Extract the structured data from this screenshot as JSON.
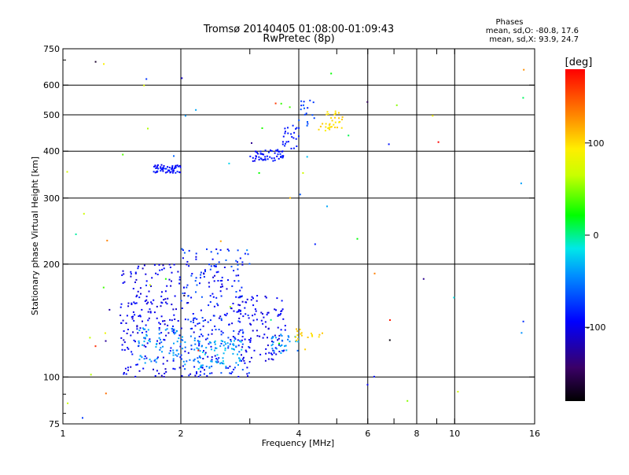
{
  "chart_data": {
    "type": "scatter",
    "title_line1": "Tromsø 20140405 01:08:00-01:09:43",
    "title_line2": "RwPretec (8p)",
    "xlabel": "Frequency [MHz]",
    "ylabel": "Stationary phase Virtual Height [km]",
    "x_scale": "log",
    "y_scale": "log",
    "xlim": [
      1,
      16
    ],
    "ylim": [
      75,
      750
    ],
    "x_ticks": [
      1,
      2,
      4,
      6,
      8,
      10,
      16
    ],
    "x_tick_labels": [
      "1",
      "2",
      "4",
      "6",
      "8",
      "10",
      "16"
    ],
    "x_minor_ticks": [
      3,
      5,
      7,
      9
    ],
    "x_gridlines": [
      2,
      4,
      6,
      8,
      10
    ],
    "y_ticks": [
      75,
      100,
      200,
      300,
      400,
      500,
      600,
      750
    ],
    "y_tick_labels": [
      "75",
      "100",
      "200",
      "300",
      "400",
      "500",
      "600",
      "750"
    ],
    "y_gridlines": [
      100,
      200,
      300,
      400,
      500,
      600
    ],
    "grid": true,
    "phase_stats": {
      "title": "Phases",
      "line_o": "mean, sd,O:  -80.8, 17.6",
      "line_x": "mean, sd,X:  93.9, 24.7"
    },
    "colorbar": {
      "label": "[deg]",
      "range": [
        -180,
        180
      ],
      "ticks": [
        100,
        0,
        -100
      ],
      "tick_labels": [
        "100",
        "0",
        "-100"
      ]
    },
    "clusters": [
      {
        "f": [
          1.7,
          2.0
        ],
        "h": [
          350,
          368
        ],
        "phase": [
          -100,
          -80
        ],
        "n": 60
      },
      {
        "f": [
          3.0,
          3.65
        ],
        "h": [
          375,
          405
        ],
        "phase": [
          -100,
          -80
        ],
        "n": 55
      },
      {
        "f": [
          3.6,
          4.0
        ],
        "h": [
          395,
          470
        ],
        "phase": [
          -95,
          -75
        ],
        "n": 25
      },
      {
        "f": [
          4.0,
          4.4
        ],
        "h": [
          460,
          560
        ],
        "phase": [
          -85,
          -60
        ],
        "n": 18
      },
      {
        "f": [
          4.5,
          5.2
        ],
        "h": [
          450,
          520
        ],
        "phase": [
          90,
          110
        ],
        "n": 35
      },
      {
        "f": [
          1.4,
          2.0
        ],
        "h": [
          100,
          200
        ],
        "phase": [
          -115,
          -85
        ],
        "n": 200
      },
      {
        "f": [
          1.55,
          2.2
        ],
        "h": [
          108,
          135
        ],
        "phase": [
          -60,
          -30
        ],
        "n": 80
      },
      {
        "f": [
          2.0,
          3.0
        ],
        "h": [
          100,
          220
        ],
        "phase": [
          -110,
          -60
        ],
        "n": 260
      },
      {
        "f": [
          2.2,
          2.9
        ],
        "h": [
          105,
          125
        ],
        "phase": [
          -50,
          -20
        ],
        "n": 70
      },
      {
        "f": [
          2.8,
          3.7
        ],
        "h": [
          110,
          165
        ],
        "phase": [
          -110,
          -90
        ],
        "n": 110
      },
      {
        "f": [
          3.4,
          4.0
        ],
        "h": [
          115,
          130
        ],
        "phase": [
          -60,
          -30
        ],
        "n": 30
      },
      {
        "f": [
          3.9,
          4.7
        ],
        "h": [
          118,
          135
        ],
        "phase": [
          95,
          110
        ],
        "n": 18
      },
      {
        "f": [
          1.0,
          16.0
        ],
        "h": [
          75,
          750
        ],
        "phase": [
          -180,
          180
        ],
        "n": 70
      }
    ]
  }
}
